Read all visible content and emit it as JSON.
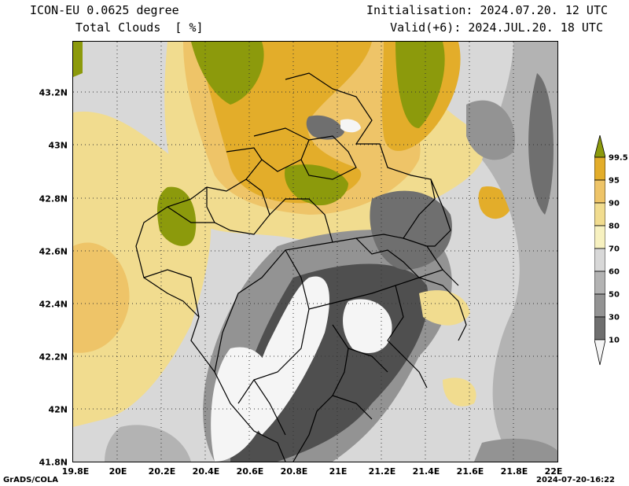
{
  "header": {
    "model": "ICON-EU 0.0625 degree",
    "variable": "Total Clouds  [ %]",
    "init": "Initialisation: 2024.07.20. 12 UTC",
    "valid": "Valid(+6): 2024.JUL.20. 18 UTC"
  },
  "axes": {
    "y_ticks": [
      "43.2N",
      "43N",
      "42.8N",
      "42.6N",
      "42.4N",
      "42.2N",
      "42N",
      "41.8N"
    ],
    "x_ticks": [
      "19.8E",
      "20E",
      "20.2E",
      "20.4E",
      "20.6E",
      "20.8E",
      "21E",
      "21.2E",
      "21.4E",
      "21.6E",
      "21.8E",
      "22E"
    ]
  },
  "colorbar": {
    "labels": [
      "99.5",
      "95",
      "90",
      "80",
      "70",
      "60",
      "50",
      "30",
      "10"
    ],
    "colors": [
      "#8c9a0c",
      "#e3ad2a",
      "#eec468",
      "#f1dc8f",
      "#f7f1c0",
      "#d8d8d8",
      "#b3b3b3",
      "#939393",
      "#6f6f6f",
      "#4f4f4f",
      "#f5f5f5"
    ]
  },
  "footer": {
    "left": "GrADS/COLA",
    "right": "2024-07-20-16:22"
  }
}
